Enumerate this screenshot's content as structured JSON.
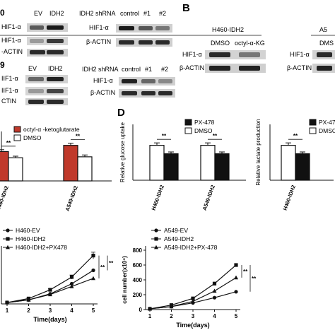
{
  "panel_labels": [
    "B",
    "D"
  ],
  "blots": {
    "row1_left": {
      "left_header": "0",
      "lanes": [
        "EV",
        "IDH2"
      ],
      "rows": [
        "HIF1-α",
        "HIF1-α",
        "-ACTIN"
      ]
    },
    "row1_shrna": {
      "lanes": [
        "IDH2 shRNA",
        "control",
        "#1",
        "#2"
      ],
      "rows": [
        "HIF1-α",
        "β-ACTIN"
      ]
    },
    "row1_b": {
      "title": "H460-IDH2",
      "lanes": [
        "DMSO",
        "octyl-α-KG"
      ],
      "rows": [
        "HIF1-α",
        "β-ACTIN"
      ]
    },
    "row1_right": {
      "title": "A5",
      "lanes": [
        "DMS"
      ],
      "rows": [
        "HIF1-α",
        "β-ACTIN"
      ]
    },
    "row2_left": {
      "left_header": "9",
      "lanes": [
        "EV",
        "IDH2"
      ],
      "rows": [
        "IIF1-α",
        "IIF1-α",
        "CTIN"
      ]
    },
    "row2_shrna": {
      "lanes": [
        "IDH2 shRNA",
        "control",
        "#1",
        "#2"
      ],
      "rows": [
        "HIF1-α",
        "β-ACTIN"
      ]
    }
  },
  "chart_data": [
    {
      "type": "bar",
      "title": "",
      "ylabel": "",
      "categories": [
        "H460-IDH2",
        "A549-IDH2"
      ],
      "series": [
        {
          "name": "octyl-α -ketoglutarate",
          "values": [
            0.95,
            1.15
          ],
          "errors": [
            0.06,
            0.07
          ],
          "color": "#c0392b"
        },
        {
          "name": "DMSO",
          "values": [
            0.75,
            0.78
          ],
          "errors": [
            0.05,
            0.06
          ],
          "color": "#ffffff"
        }
      ],
      "significance": [
        "**",
        "**"
      ],
      "ylim": [
        0,
        1.6
      ]
    },
    {
      "type": "bar",
      "title": "",
      "ylabel": "Relative glucose uptake",
      "categories": [
        "H460-IDH2",
        "A549-IDH2"
      ],
      "series": [
        {
          "name": "DMSO",
          "values": [
            1.0,
            1.0
          ],
          "errors": [
            0.07,
            0.07
          ],
          "color": "#ffffff"
        },
        {
          "name": "PX-478",
          "values": [
            0.76,
            0.76
          ],
          "errors": [
            0.05,
            0.05
          ],
          "color": "#111111"
        }
      ],
      "significance": [
        "**",
        "**"
      ],
      "ylim": [
        0,
        1.6
      ]
    },
    {
      "type": "bar",
      "title": "",
      "ylabel": "Relative lactate production",
      "categories": [
        "H460-IDH2"
      ],
      "series": [
        {
          "name": "DMSO",
          "values": [
            1.0
          ],
          "errors": [
            0.07
          ],
          "color": "#ffffff"
        },
        {
          "name": "PX-47",
          "values": [
            0.76
          ],
          "errors": [
            0.05
          ],
          "color": "#111111"
        }
      ],
      "legend_labels": [
        "PX-47",
        "DMSO"
      ],
      "significance": [
        "**"
      ],
      "ylim": [
        0,
        1.6
      ]
    },
    {
      "type": "line",
      "title": "",
      "xlabel": "Time(days)",
      "ylabel": "",
      "x": [
        1,
        2,
        3,
        4,
        5
      ],
      "series": [
        {
          "name": "H460-EV",
          "marker": "circle",
          "values": [
            0.2,
            0.6,
            1.5,
            3.0,
            5.0
          ]
        },
        {
          "name": "H460-IDH2",
          "marker": "square",
          "values": [
            0.2,
            0.8,
            2.1,
            4.0,
            7.2
          ],
          "errors": [
            0,
            0.1,
            0.15,
            0.3,
            0.5
          ]
        },
        {
          "name": "H460-IDH2+PX478",
          "marker": "triangle",
          "values": [
            0.2,
            0.6,
            1.4,
            2.6,
            3.8
          ]
        }
      ],
      "significance": [
        "**",
        "**"
      ],
      "ylim": [
        0,
        8
      ]
    },
    {
      "type": "line",
      "title": "",
      "xlabel": "Time(days)",
      "ylabel": "cell number(x10⁴)",
      "x": [
        1,
        2,
        3,
        4,
        5
      ],
      "yticks": [
        0,
        200,
        400,
        600,
        800
      ],
      "series": [
        {
          "name": "A549-EV",
          "marker": "circle",
          "values": [
            10,
            40,
            90,
            160,
            240
          ]
        },
        {
          "name": "A549-IDH2",
          "marker": "square",
          "values": [
            10,
            60,
            150,
            350,
            600
          ]
        },
        {
          "name": "A549-IDH2+PX-478",
          "marker": "triangle",
          "values": [
            10,
            40,
            110,
            250,
            430
          ]
        }
      ],
      "significance": [
        "**",
        "**"
      ],
      "ylim": [
        0,
        800
      ]
    }
  ]
}
